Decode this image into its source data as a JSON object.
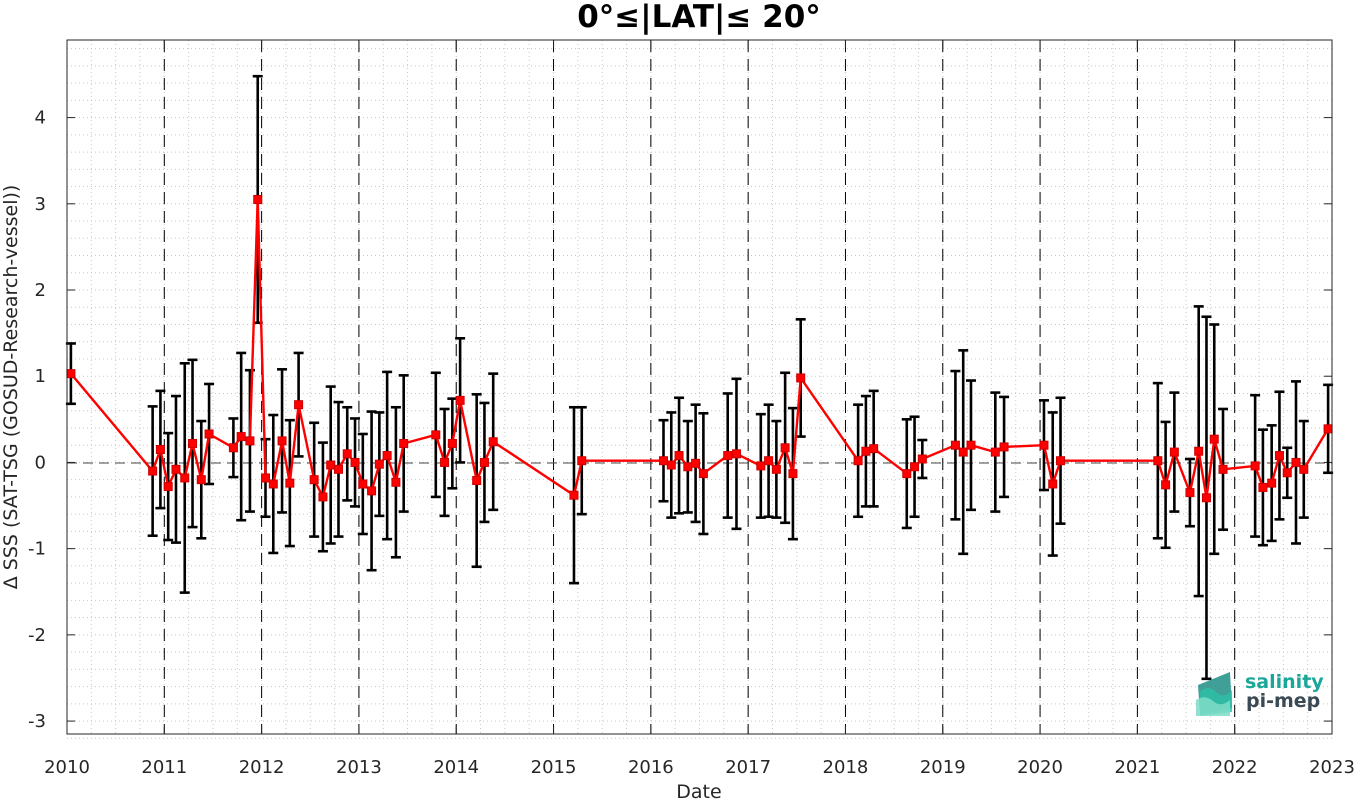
{
  "chart_data": {
    "type": "scatter",
    "title": "0°≤|LAT|≤ 20°",
    "xlabel": "Date",
    "ylabel": "Δ SSS (SAT-TSG (GOSUD-Research-vessel))",
    "xlim": [
      2010,
      2023
    ],
    "ylim": [
      -3.15,
      4.9
    ],
    "xticks": [
      2010,
      2011,
      2012,
      2013,
      2014,
      2015,
      2016,
      2017,
      2018,
      2019,
      2020,
      2021,
      2022,
      2023
    ],
    "yticks": [
      -3,
      -2,
      -1,
      0,
      1,
      2,
      3,
      4
    ],
    "grid": "minor dotted",
    "year_separators": "dashed vertical lines at year boundaries",
    "zero_line": "dashed horizontal line at 0",
    "colors": {
      "line": "#ff0000",
      "marker_edge": "#cc0000",
      "errorbar": "#000000"
    },
    "series": [
      {
        "x": [
          2010.04,
          2010.88,
          2010.96,
          2011.04,
          2011.12,
          2011.21,
          2011.29,
          2011.38,
          2011.46,
          2011.71,
          2011.79,
          2011.88,
          2011.96,
          2012.04,
          2012.12,
          2012.21,
          2012.29,
          2012.38,
          2012.54,
          2012.63,
          2012.71,
          2012.79,
          2012.88,
          2012.96,
          2013.04,
          2013.13,
          2013.21,
          2013.29,
          2013.38,
          2013.46,
          2013.79,
          2013.88,
          2013.96,
          2014.04,
          2014.21,
          2014.29,
          2014.38,
          2015.21,
          2015.29,
          2016.13,
          2016.21,
          2016.29,
          2016.38,
          2016.46,
          2016.54,
          2016.79,
          2016.88,
          2017.13,
          2017.21,
          2017.29,
          2017.38,
          2017.46,
          2017.54,
          2018.13,
          2018.21,
          2018.29,
          2018.63,
          2018.71,
          2018.79,
          2019.13,
          2019.21,
          2019.29,
          2019.54,
          2019.63,
          2020.04,
          2020.13,
          2020.21,
          2021.21,
          2021.29,
          2021.38,
          2021.54,
          2021.63,
          2021.71,
          2021.79,
          2021.88,
          2022.21,
          2022.29,
          2022.38,
          2022.46,
          2022.54,
          2022.63,
          2022.71,
          2022.96
        ],
        "y": [
          1.03,
          -0.1,
          0.15,
          -0.28,
          -0.08,
          -0.18,
          0.22,
          -0.2,
          0.33,
          0.17,
          0.3,
          0.25,
          3.05,
          -0.18,
          -0.25,
          0.25,
          -0.24,
          0.67,
          -0.2,
          -0.4,
          -0.03,
          -0.08,
          0.1,
          0.0,
          -0.25,
          -0.33,
          -0.02,
          0.08,
          -0.23,
          0.22,
          0.32,
          0.0,
          0.22,
          0.72,
          -0.21,
          0.0,
          0.24,
          -0.38,
          0.02,
          0.02,
          -0.03,
          0.08,
          -0.05,
          -0.01,
          -0.13,
          0.08,
          0.1,
          -0.04,
          0.02,
          -0.08,
          0.17,
          -0.13,
          0.98,
          0.02,
          0.13,
          0.16,
          -0.13,
          -0.05,
          0.04,
          0.2,
          0.12,
          0.2,
          0.12,
          0.18,
          0.2,
          -0.25,
          0.02,
          0.02,
          -0.26,
          0.12,
          -0.35,
          0.13,
          -0.41,
          0.27,
          -0.08,
          -0.04,
          -0.29,
          -0.24,
          0.08,
          -0.12,
          0.0,
          -0.08,
          0.39
        ],
        "err": [
          0.35,
          0.75,
          0.68,
          0.62,
          0.85,
          1.33,
          0.97,
          0.68,
          0.58,
          0.34,
          0.97,
          0.82,
          1.43,
          0.45,
          0.8,
          0.83,
          0.73,
          0.6,
          0.66,
          0.63,
          0.91,
          0.78,
          0.54,
          0.51,
          0.58,
          0.92,
          0.6,
          0.97,
          0.87,
          0.79,
          0.72,
          0.62,
          0.52,
          0.72,
          1.0,
          0.69,
          0.79,
          1.02,
          0.62,
          0.47,
          0.61,
          0.67,
          0.53,
          0.68,
          0.7,
          0.72,
          0.87,
          0.6,
          0.65,
          0.56,
          0.87,
          0.76,
          0.68,
          0.65,
          0.64,
          0.67,
          0.63,
          0.58,
          0.22,
          0.86,
          1.18,
          0.75,
          0.69,
          0.58,
          0.52,
          0.83,
          0.73,
          0.9,
          0.73,
          0.69,
          0.39,
          1.68,
          2.1,
          1.33,
          0.7,
          0.82,
          0.67,
          0.67,
          0.74,
          0.29,
          0.94,
          0.56,
          0.51
        ]
      }
    ]
  },
  "logo": {
    "line1": "salinity",
    "line2": "pi-mep",
    "color": "#1aa698"
  }
}
